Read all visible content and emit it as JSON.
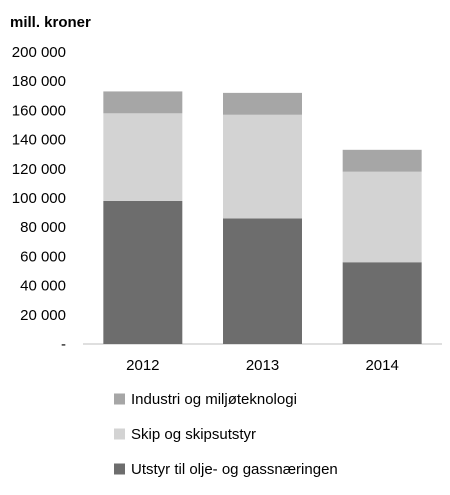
{
  "chart_data": {
    "type": "bar",
    "stacked": true,
    "title": "",
    "unit_label": "mill. kroner",
    "xlabel": "",
    "ylabel": "",
    "categories": [
      "2012",
      "2013",
      "2014"
    ],
    "series": [
      {
        "name": "Utstyr til olje- og gassnæringen",
        "color": "#6d6d6d",
        "values": [
          98000,
          86000,
          56000
        ]
      },
      {
        "name": "Skip og skipsutstyr",
        "color": "#d3d3d3",
        "values": [
          60000,
          71000,
          62000
        ]
      },
      {
        "name": "Industri og miljøteknologi",
        "color": "#a6a6a6",
        "values": [
          15000,
          15000,
          15000
        ]
      }
    ],
    "ylim": [
      0,
      200000
    ],
    "y_ticks": [
      0,
      20000,
      40000,
      60000,
      80000,
      100000,
      120000,
      140000,
      160000,
      180000,
      200000
    ],
    "y_tick_labels": [
      "-",
      "20 000",
      "40 000",
      "60 000",
      "80 000",
      "100 000",
      "120 000",
      "140 000",
      "160 000",
      "180 000",
      "200 000"
    ],
    "legend_order": [
      2,
      1,
      0
    ],
    "legend_position": "bottom",
    "grid": false
  }
}
